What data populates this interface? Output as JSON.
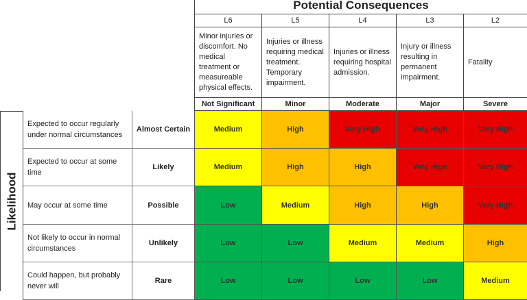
{
  "title": "Potential Consequences",
  "likelihood_label": "Likelihood",
  "colors": {
    "Low": "#00b050",
    "Medium": "#ffff00",
    "High": "#ffc000",
    "Very High": "#e60000"
  },
  "columns": [
    {
      "level": "L6",
      "description": "Minor injuries or discomfort. No medical treatment or measureable physical effects.",
      "severity": "Not Significant"
    },
    {
      "level": "L5",
      "description": "Injuries or illness requiring medical treatment. Temporary impairment.",
      "severity": "Minor"
    },
    {
      "level": "L4",
      "description": "Injuries or illness requiring hospital admission.",
      "severity": "Moderate"
    },
    {
      "level": "L3",
      "description": "Injury or illness resulting in permanent impairment.",
      "severity": "Major"
    },
    {
      "level": "L2",
      "description": "Fatality",
      "severity": "Severe"
    }
  ],
  "rows": [
    {
      "description": "Expected to occur regularly under normal circumstances",
      "rating": "Almost Certain",
      "cells": [
        "Medium",
        "High",
        "Very High",
        "Very High",
        "Very High"
      ]
    },
    {
      "description": "Expected to occur at some time",
      "rating": "Likely",
      "cells": [
        "Medium",
        "High",
        "High",
        "Very High",
        "Very High"
      ]
    },
    {
      "description": "May occur at some time",
      "rating": "Possible",
      "cells": [
        "Low",
        "Medium",
        "High",
        "High",
        "Very High"
      ]
    },
    {
      "description": "Not likely to occur in normal circumstances",
      "rating": "Unlikely",
      "cells": [
        "Low",
        "Low",
        "Medium",
        "Medium",
        "High"
      ]
    },
    {
      "description": "Could happen, but probably never will",
      "rating": "Rare",
      "cells": [
        "Low",
        "Low",
        "Low",
        "Low",
        "Medium"
      ]
    }
  ]
}
